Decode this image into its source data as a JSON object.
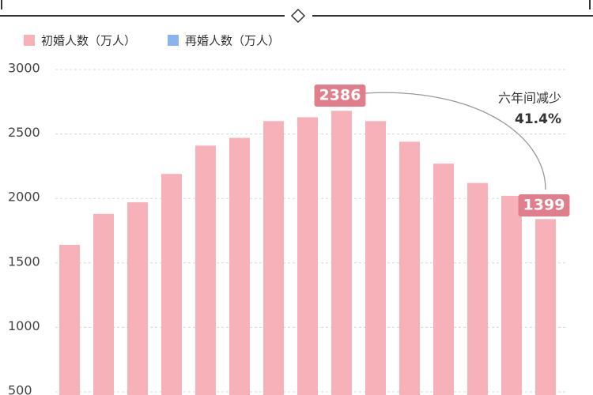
{
  "chart_data": {
    "type": "bar",
    "categories": [
      null,
      null,
      null,
      null,
      null,
      null,
      null,
      null,
      null,
      null,
      null,
      null,
      null,
      null,
      null
    ],
    "series": [
      {
        "name": "初婚人数（万人）",
        "color": "#f7b2b9",
        "values": [
          1640,
          1880,
          1970,
          2190,
          2410,
          2470,
          2600,
          2630,
          2680,
          2600,
          2440,
          2270,
          2120,
          2020,
          1840
        ]
      },
      {
        "name": "再婚人数（万人）",
        "color": "#8bb4ee",
        "values": [
          null,
          null,
          null,
          null,
          null,
          null,
          null,
          null,
          null,
          null,
          null,
          null,
          null,
          null,
          null
        ]
      }
    ],
    "ylim": [
      500,
      3000
    ],
    "yticks": [
      500,
      1000,
      1500,
      2000,
      2500,
      3000
    ],
    "grid": true,
    "annotations": [
      "2386",
      "1399",
      "六年间减少",
      "41.4%"
    ]
  }
}
